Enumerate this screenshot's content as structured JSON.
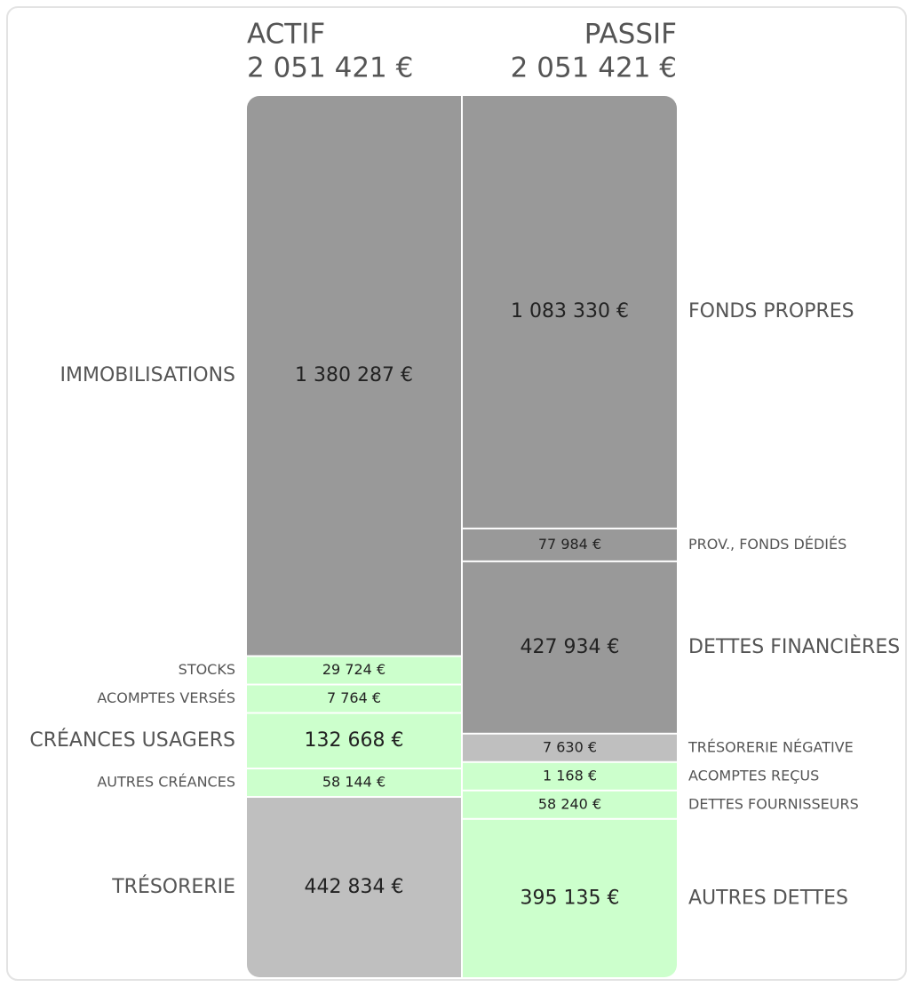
{
  "chart_data": {
    "type": "balance",
    "columns": [
      {
        "name": "ACTIF",
        "total": 2051421,
        "total_label": "2 051 421 €",
        "segments": [
          {
            "name": "IMMOBILISATIONS",
            "value": 1380287,
            "value_label": "1 380 287 €",
            "color": "#999999"
          },
          {
            "name": "STOCKS",
            "value": 29724,
            "value_label": "29 724 €",
            "color": "#ccffcc"
          },
          {
            "name": "ACOMPTES VERSÉS",
            "value": 7764,
            "value_label": "7 764 €",
            "color": "#ccffcc"
          },
          {
            "name": "CRÉANCES USAGERS",
            "value": 132668,
            "value_label": "132 668 €",
            "color": "#ccffcc"
          },
          {
            "name": "AUTRES CRÉANCES",
            "value": 58144,
            "value_label": "58 144 €",
            "color": "#ccffcc"
          },
          {
            "name": "TRÉSORERIE",
            "value": 442834,
            "value_label": "442 834 €",
            "color": "#bfbfbf"
          }
        ]
      },
      {
        "name": "PASSIF",
        "total": 2051421,
        "total_label": "2 051 421 €",
        "segments": [
          {
            "name": "FONDS PROPRES",
            "value": 1083330,
            "value_label": "1 083 330 €",
            "color": "#999999"
          },
          {
            "name": "PROV., FONDS DÉDIÉS",
            "value": 77984,
            "value_label": "77 984 €",
            "color": "#999999"
          },
          {
            "name": "DETTES FINANCIÈRES",
            "value": 427934,
            "value_label": "427 934 €",
            "color": "#999999"
          },
          {
            "name": "TRÉSORERIE NÉGATIVE",
            "value": 7630,
            "value_label": "7 630 €",
            "color": "#bfbfbf"
          },
          {
            "name": "ACOMPTES REÇUS",
            "value": 1168,
            "value_label": "1 168 €",
            "color": "#ccffcc"
          },
          {
            "name": "DETTES FOURNISSEURS",
            "value": 58240,
            "value_label": "58 240 €",
            "color": "#ccffcc"
          },
          {
            "name": "AUTRES DETTES",
            "value": 395135,
            "value_label": "395 135 €",
            "color": "#ccffcc"
          }
        ]
      }
    ]
  }
}
